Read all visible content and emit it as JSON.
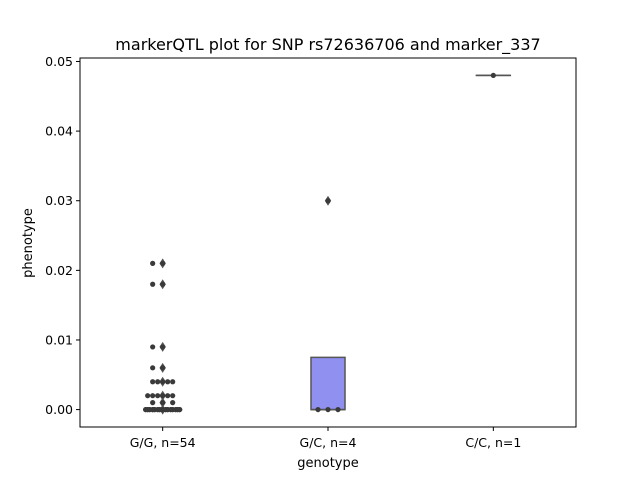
{
  "chart_data": {
    "type": "box",
    "title": "markerQTL plot for SNP rs72636706 and marker_337",
    "xlabel": "genotype",
    "ylabel": "phenotype",
    "ylim": [
      -0.0025,
      0.0505
    ],
    "yticks": [
      0.0,
      0.01,
      0.02,
      0.03,
      0.04,
      0.05
    ],
    "ytick_labels": [
      "0.00",
      "0.01",
      "0.02",
      "0.03",
      "0.04",
      "0.05"
    ],
    "categories": [
      "G/G, n=54",
      "G/C, n=4",
      "C/C, n=1"
    ],
    "box_color": "#9090f0",
    "point_color": "#3a3a3a",
    "boxes": [
      {
        "category": "G/G, n=54",
        "q1": 0.0,
        "median": 0.0,
        "q3": 0.0,
        "whisker_low": 0.0,
        "whisker_high": 0.0,
        "outliers": [
          0.0,
          0.001,
          0.002,
          0.004,
          0.006,
          0.009,
          0.018,
          0.021
        ]
      },
      {
        "category": "G/C, n=4",
        "q1": 0.0,
        "median": 0.0,
        "q3": 0.0075,
        "whisker_low": 0.0,
        "whisker_high": 0.0075,
        "outliers": [
          0.03
        ]
      },
      {
        "category": "C/C, n=1",
        "q1": 0.048,
        "median": 0.048,
        "q3": 0.048,
        "whisker_low": 0.048,
        "whisker_high": 0.048,
        "outliers": []
      }
    ],
    "points": [
      {
        "category": "G/G, n=54",
        "values": [
          0.0,
          0.0,
          0.0,
          0.0,
          0.0,
          0.0,
          0.0,
          0.0,
          0.0,
          0.0,
          0.0,
          0.0,
          0.0,
          0.0,
          0.0,
          0.0,
          0.0,
          0.0,
          0.0,
          0.0,
          0.0,
          0.0,
          0.0,
          0.0,
          0.0,
          0.0,
          0.0,
          0.0,
          0.0,
          0.0,
          0.001,
          0.001,
          0.001,
          0.002,
          0.002,
          0.002,
          0.002,
          0.002,
          0.002,
          0.004,
          0.004,
          0.004,
          0.004,
          0.004,
          0.006,
          0.006,
          0.009,
          0.009,
          0.018,
          0.018,
          0.021,
          0.021,
          0.0,
          0.0
        ]
      },
      {
        "category": "G/C, n=4",
        "values": [
          0.0,
          0.0,
          0.0,
          0.03
        ]
      },
      {
        "category": "C/C, n=1",
        "values": [
          0.048
        ]
      }
    ]
  }
}
